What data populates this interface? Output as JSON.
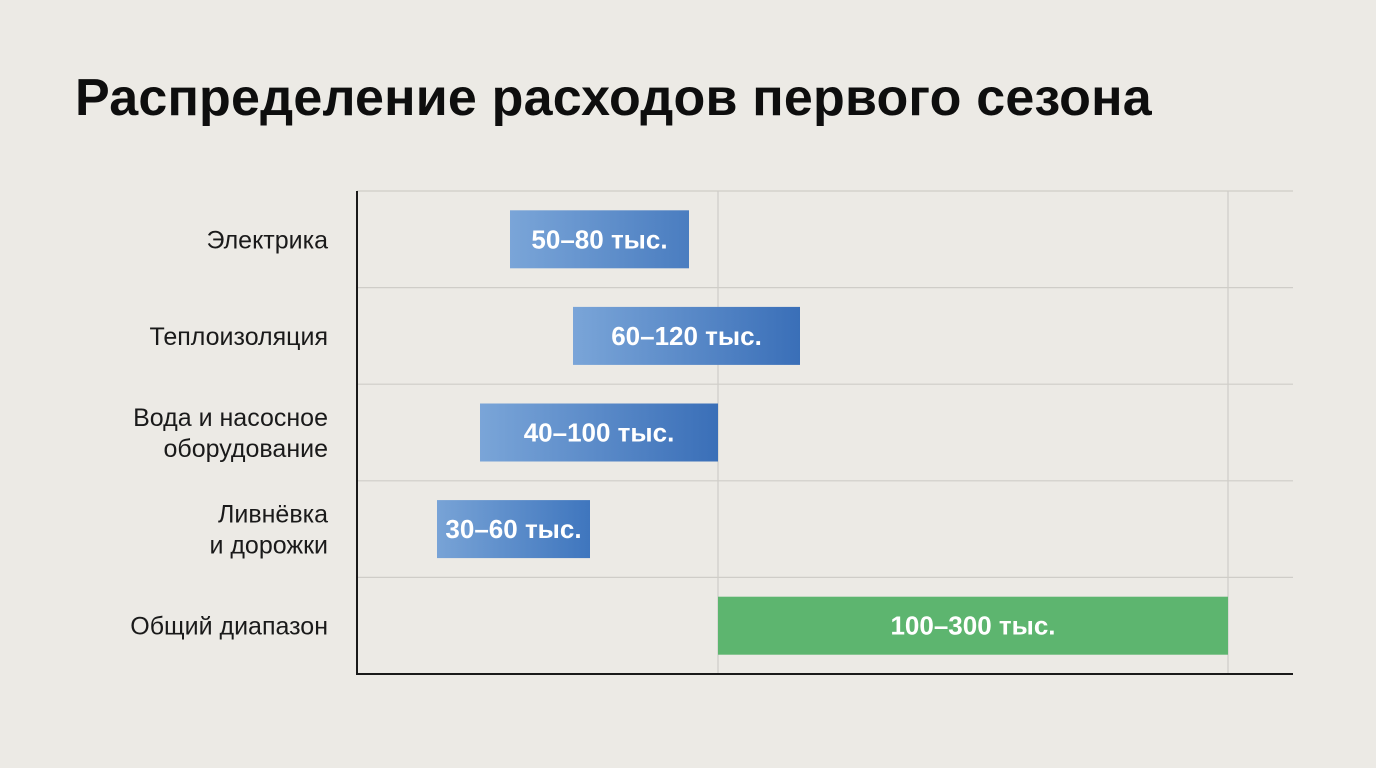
{
  "title": "Распределение расходов первого сезона",
  "chart_data": {
    "type": "bar",
    "orientation": "horizontal-range",
    "title": "Распределение расходов первого сезона",
    "unit": "тыс.",
    "xlim": [
      0,
      300
    ],
    "grid": true,
    "categories": [
      [
        "Электрика"
      ],
      [
        "Теплоизоляция"
      ],
      [
        "Вода и насосное",
        "оборудование"
      ],
      [
        "Ливнёвка",
        "и дорожки"
      ],
      [
        "Общий диапазон"
      ]
    ],
    "ranges": [
      {
        "low": 50,
        "high": 80,
        "label": "50–80 тыс.",
        "color": "#4A7DC0",
        "gradient_start": "#7AA5D8"
      },
      {
        "low": 60,
        "high": 120,
        "label": "60–120 тыс.",
        "color": "#3A6FB8",
        "gradient_start": "#7AA5D8"
      },
      {
        "low": 40,
        "high": 100,
        "label": "40–100 тыс.",
        "color": "#3A6FB8",
        "gradient_start": "#7AA5D8"
      },
      {
        "low": 30,
        "high": 60,
        "label": "30–60 тыс.",
        "color": "#3F76BE",
        "gradient_start": "#78A3D6"
      },
      {
        "low": 100,
        "high": 300,
        "label": "100–300 тыс.",
        "color": "#5DB56F",
        "gradient_start": "#5DB56F"
      }
    ],
    "colors": {
      "grid": "#CFCDC8",
      "axis": "#1A1A1A",
      "background": "#ECEAE5"
    }
  }
}
